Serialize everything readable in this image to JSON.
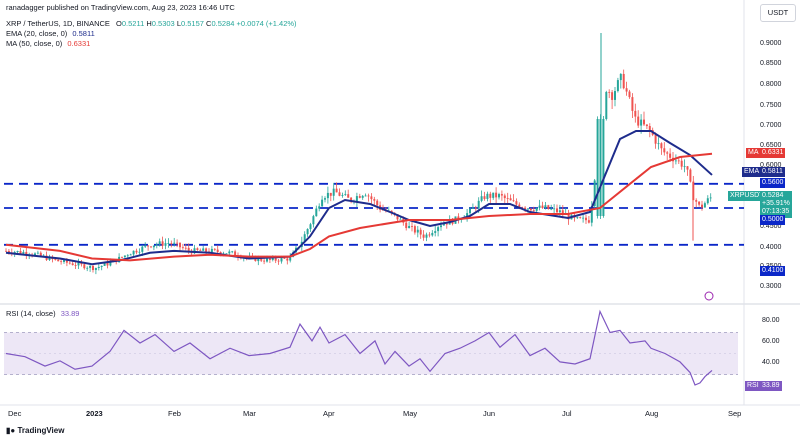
{
  "header": {
    "publisher": "ranadagger published on TradingView.com, Aug 23, 2023 16:46 UTC"
  },
  "legend": {
    "symbol": "XRP / TetherUS, 1D, BINANCE",
    "ohlc": {
      "o_label": "O",
      "o": "0.5211",
      "h_label": "H",
      "h": "0.5303",
      "l_label": "L",
      "l": "0.5157",
      "c_label": "C",
      "c": "0.5284",
      "change": "+0.0074 (+1.42%)"
    },
    "ema": {
      "label": "EMA (20, close, 0)",
      "value": "0.5811"
    },
    "ma": {
      "label": "MA (50, close, 0)",
      "value": "0.6331"
    },
    "rsi": {
      "label": "RSI (14, close)",
      "value": "33.89"
    }
  },
  "currency_button": "USDT",
  "price_axis": {
    "ticks": [
      "0.9000",
      "0.8500",
      "0.8000",
      "0.7500",
      "0.7000",
      "0.6500",
      "0.6000",
      "0.5500",
      "0.5000",
      "0.4500",
      "0.4000",
      "0.3500",
      "0.3000"
    ]
  },
  "rsi_axis": {
    "ticks": [
      "80.00",
      "60.00",
      "40.00"
    ]
  },
  "time_axis": {
    "ticks": [
      "Dec",
      "2023",
      "Feb",
      "Mar",
      "Apr",
      "May",
      "Jun",
      "Jul",
      "Aug",
      "Sep"
    ]
  },
  "badges": {
    "ma": {
      "tag": "MA",
      "value": "0.6331"
    },
    "ema": {
      "tag": "EMA",
      "value": "0.5811"
    },
    "level_high": "0.5600",
    "symbol_tag": "XRPUSDT",
    "price": "0.5284",
    "change_pct": "+35.91%",
    "countdown": "07:13:35",
    "level_mid": "0.5000",
    "level_low": "0.4100",
    "rsi_tag": "RSI",
    "rsi_value": "33.89"
  },
  "footer": {
    "brand": "TradingView"
  },
  "colors": {
    "up": "#26a69a",
    "down": "#ef5350",
    "ema": "#1e2c8c",
    "ma": "#e53935",
    "level": "#0b27c8",
    "rsi": "#7e57c2",
    "rsi_band": "#ede7f6"
  },
  "chart_data": [
    {
      "type": "candlestick",
      "title": "XRP / TetherUS, 1D, BINANCE",
      "x_ticks": [
        "Dec",
        "2023",
        "Feb",
        "Mar",
        "Apr",
        "May",
        "Jun",
        "Jul",
        "Aug",
        "Sep"
      ],
      "y_scale": "log",
      "ylim": [
        0.28,
        0.96
      ],
      "support_resistance_levels": [
        0.56,
        0.5,
        0.41
      ],
      "series": [
        {
          "name": "EMA (20, close, 0)",
          "last_value": 0.5811,
          "x": [
            "Dec",
            "2023",
            "Feb",
            "Mar",
            "Apr",
            "May",
            "Jun",
            "Jul",
            "Aug",
            "Sep"
          ],
          "values": [
            0.39,
            0.358,
            0.39,
            0.375,
            0.515,
            0.465,
            0.51,
            0.47,
            0.68,
            null
          ]
        },
        {
          "name": "MA (50, close, 0)",
          "last_value": 0.6331,
          "x": [
            "Dec",
            "2023",
            "Feb",
            "Mar",
            "Apr",
            "May",
            "Jun",
            "Jul",
            "Aug",
            "Sep"
          ],
          "values": [
            0.395,
            0.37,
            0.38,
            0.38,
            0.44,
            0.47,
            0.48,
            0.485,
            0.6,
            null
          ]
        }
      ],
      "close_points": {
        "x": [
          "Dec",
          "2023",
          "Feb",
          "Mar",
          "Apr",
          "May",
          "Jun",
          "Jul",
          "Aug",
          "Sep"
        ],
        "values": [
          0.39,
          0.36,
          0.39,
          0.37,
          0.53,
          0.45,
          0.52,
          0.47,
          0.65,
          null
        ]
      },
      "last_close": 0.5284
    },
    {
      "type": "line",
      "title": "RSI (14, close)",
      "ylim": [
        10,
        95
      ],
      "bands": [
        30,
        70
      ],
      "x": [
        "Dec",
        "2023",
        "Feb",
        "Mar",
        "Apr",
        "May",
        "Jun",
        "Jul",
        "Aug",
        "Sep"
      ],
      "values": [
        48,
        40,
        60,
        52,
        66,
        40,
        62,
        42,
        58,
        null
      ],
      "last_value": 33.89
    }
  ]
}
